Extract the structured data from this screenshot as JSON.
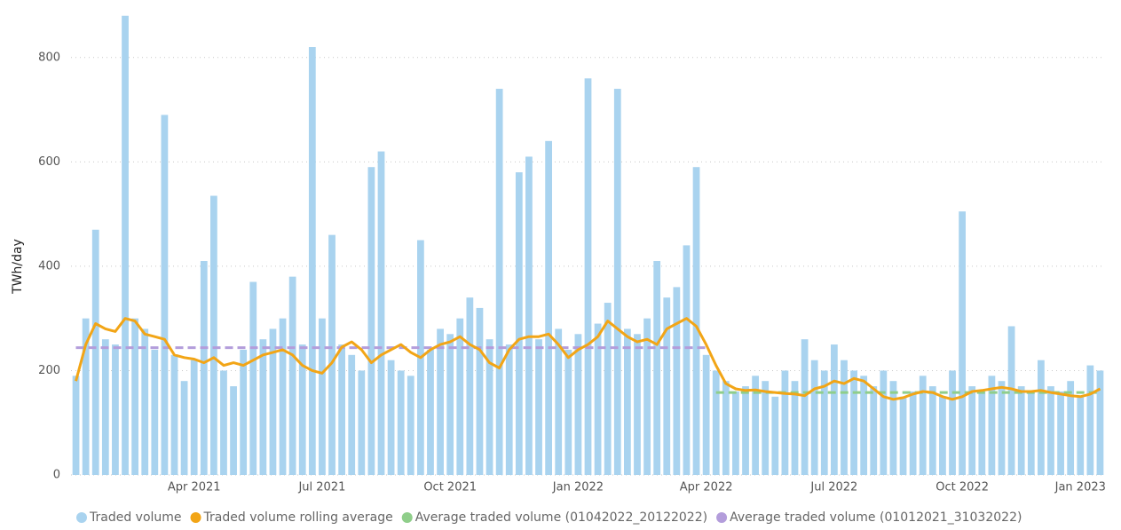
{
  "chart_data": {
    "type": "bar",
    "y_label": "TWh/day",
    "categories": [
      null,
      null,
      null,
      null,
      null,
      null,
      null,
      null,
      null,
      null,
      null,
      null,
      "Apr 2021",
      null,
      null,
      null,
      null,
      null,
      null,
      null,
      null,
      null,
      null,
      null,
      null,
      "Jul 2021",
      null,
      null,
      null,
      null,
      null,
      null,
      null,
      null,
      null,
      null,
      null,
      null,
      "Oct 2021",
      null,
      null,
      null,
      null,
      null,
      null,
      null,
      null,
      null,
      null,
      null,
      null,
      "Jan 2022",
      null,
      null,
      null,
      null,
      null,
      null,
      null,
      null,
      null,
      null,
      null,
      null,
      "Apr 2022",
      null,
      null,
      null,
      null,
      null,
      null,
      null,
      null,
      null,
      null,
      null,
      null,
      "Jul 2022",
      null,
      null,
      null,
      null,
      null,
      null,
      null,
      null,
      null,
      null,
      null,
      null,
      "Oct 2022",
      null,
      null,
      null,
      null,
      null,
      null,
      null,
      null,
      null,
      null,
      null,
      "Jan 2023",
      null,
      null
    ],
    "ylim": [
      0,
      900
    ],
    "yticks": [
      0,
      200,
      400,
      600,
      800
    ],
    "grid": true,
    "series": [
      {
        "name": "Traded volume",
        "type": "bar",
        "color": "#a9d3ef",
        "values": [
          190,
          300,
          470,
          260,
          250,
          880,
          300,
          280,
          240,
          690,
          230,
          180,
          220,
          410,
          535,
          200,
          170,
          240,
          370,
          260,
          280,
          300,
          380,
          250,
          820,
          300,
          460,
          250,
          230,
          200,
          590,
          620,
          220,
          200,
          190,
          450,
          240,
          280,
          270,
          300,
          340,
          320,
          260,
          740,
          250,
          580,
          610,
          260,
          640,
          280,
          240,
          270,
          760,
          290,
          330,
          740,
          280,
          270,
          300,
          410,
          340,
          360,
          440,
          590,
          230,
          200,
          180,
          160,
          170,
          190,
          180,
          150,
          200,
          180,
          260,
          220,
          200,
          250,
          220,
          200,
          190,
          170,
          200,
          180,
          150,
          160,
          190,
          170,
          150,
          200,
          505,
          170,
          160,
          190,
          180,
          285,
          170,
          160,
          220,
          170,
          160,
          180,
          150,
          210,
          200
        ]
      },
      {
        "name": "Traded volume rolling average",
        "type": "line",
        "color": "#f2a516",
        "values": [
          180,
          250,
          290,
          280,
          275,
          300,
          295,
          270,
          265,
          260,
          230,
          225,
          222,
          215,
          225,
          210,
          215,
          210,
          220,
          230,
          235,
          240,
          230,
          210,
          200,
          195,
          215,
          245,
          255,
          240,
          215,
          230,
          240,
          250,
          235,
          225,
          240,
          250,
          255,
          265,
          250,
          240,
          215,
          205,
          240,
          260,
          265,
          265,
          270,
          250,
          225,
          240,
          250,
          265,
          295,
          280,
          265,
          255,
          260,
          250,
          280,
          290,
          300,
          285,
          250,
          210,
          175,
          165,
          162,
          163,
          160,
          158,
          156,
          155,
          152,
          165,
          170,
          180,
          175,
          185,
          180,
          165,
          150,
          145,
          148,
          155,
          160,
          158,
          150,
          145,
          150,
          160,
          162,
          165,
          168,
          165,
          160,
          160,
          162,
          158,
          155,
          152,
          150,
          155,
          165
        ]
      },
      {
        "name": "Average traded volume (01042022_20122022)",
        "type": "dashed-line",
        "color": "#8fce8a",
        "values": [
          null,
          null,
          null,
          null,
          null,
          null,
          null,
          null,
          null,
          null,
          null,
          null,
          null,
          null,
          null,
          null,
          null,
          null,
          null,
          null,
          null,
          null,
          null,
          null,
          null,
          null,
          null,
          null,
          null,
          null,
          null,
          null,
          null,
          null,
          null,
          null,
          null,
          null,
          null,
          null,
          null,
          null,
          null,
          null,
          null,
          null,
          null,
          null,
          null,
          null,
          null,
          null,
          null,
          null,
          null,
          null,
          null,
          null,
          null,
          null,
          null,
          null,
          null,
          null,
          null,
          158,
          158,
          158,
          158,
          158,
          158,
          158,
          158,
          158,
          158,
          158,
          158,
          158,
          158,
          158,
          158,
          158,
          158,
          158,
          158,
          158,
          158,
          158,
          158,
          158,
          158,
          158,
          158,
          158,
          158,
          158,
          158,
          158,
          158,
          158,
          158,
          158,
          158,
          158,
          158
        ]
      },
      {
        "name": "Average traded volume (01012021_31032022)",
        "type": "dashed-line",
        "color": "#b39ddb",
        "values": [
          244,
          244,
          244,
          244,
          244,
          244,
          244,
          244,
          244,
          244,
          244,
          244,
          244,
          244,
          244,
          244,
          244,
          244,
          244,
          244,
          244,
          244,
          244,
          244,
          244,
          244,
          244,
          244,
          244,
          244,
          244,
          244,
          244,
          244,
          244,
          244,
          244,
          244,
          244,
          244,
          244,
          244,
          244,
          244,
          244,
          244,
          244,
          244,
          244,
          244,
          244,
          244,
          244,
          244,
          244,
          244,
          244,
          244,
          244,
          244,
          244,
          244,
          244,
          244,
          244,
          null,
          null,
          null,
          null,
          null,
          null,
          null,
          null,
          null,
          null,
          null,
          null,
          null,
          null,
          null,
          null,
          null,
          null,
          null,
          null,
          null,
          null,
          null,
          null,
          null,
          null,
          null,
          null,
          null,
          null,
          null,
          null,
          null,
          null,
          null,
          null,
          null,
          null,
          null,
          null
        ]
      }
    ]
  }
}
